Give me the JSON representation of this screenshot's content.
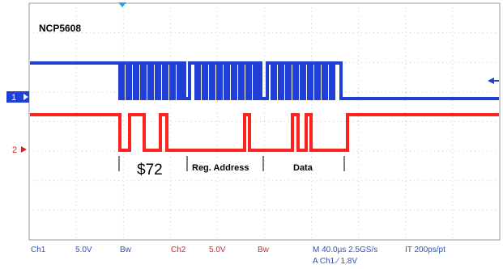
{
  "waveform_label": "NCP5608",
  "colors": {
    "ch1": "#1f3fd6",
    "ch2": "#ff2020",
    "grid": "#c9c9c9",
    "frame": "#9a9a9a",
    "trigger": "#2a9df4",
    "status_text": "#2b4fc9"
  },
  "channel_markers": {
    "ch1": "1",
    "ch2": "2"
  },
  "annotations": {
    "address": "$72",
    "register": "Reg. Address",
    "data": "Data"
  },
  "status_bar": {
    "ch1_label": "Ch1",
    "ch1_scale": "5.0V",
    "ch1_coupling": "Bw",
    "ch2_label": "Ch2",
    "ch2_scale": "5.0V",
    "ch2_coupling": "Bw",
    "timebase": "M 40.0µs 2.5GS/s",
    "record_length": "IT 200ps/pt",
    "trigger": "A  Ch1  ⁄  1.8V"
  },
  "icons": {
    "trigger_position": "trigger-position-icon",
    "ch1_offset": "ch1-offset-arrow-icon",
    "ch2_offset": "ch2-offset-arrow-icon",
    "ch1_trigger_level": "trigger-level-arrow-icon"
  }
}
